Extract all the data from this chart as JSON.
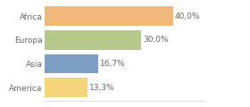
{
  "categories": [
    "Africa",
    "Europa",
    "Asia",
    "America"
  ],
  "values": [
    40.0,
    30.0,
    16.7,
    13.3
  ],
  "labels": [
    "40,0%",
    "30,0%",
    "16,7%",
    "13,3%"
  ],
  "bar_colors": [
    "#f0b87a",
    "#b5c98a",
    "#7b9ec2",
    "#f5d57a"
  ],
  "xlim": [
    0,
    50
  ],
  "background_color": "#ffffff",
  "label_fontsize": 6.5,
  "tick_fontsize": 6.5,
  "bar_height": 0.82
}
